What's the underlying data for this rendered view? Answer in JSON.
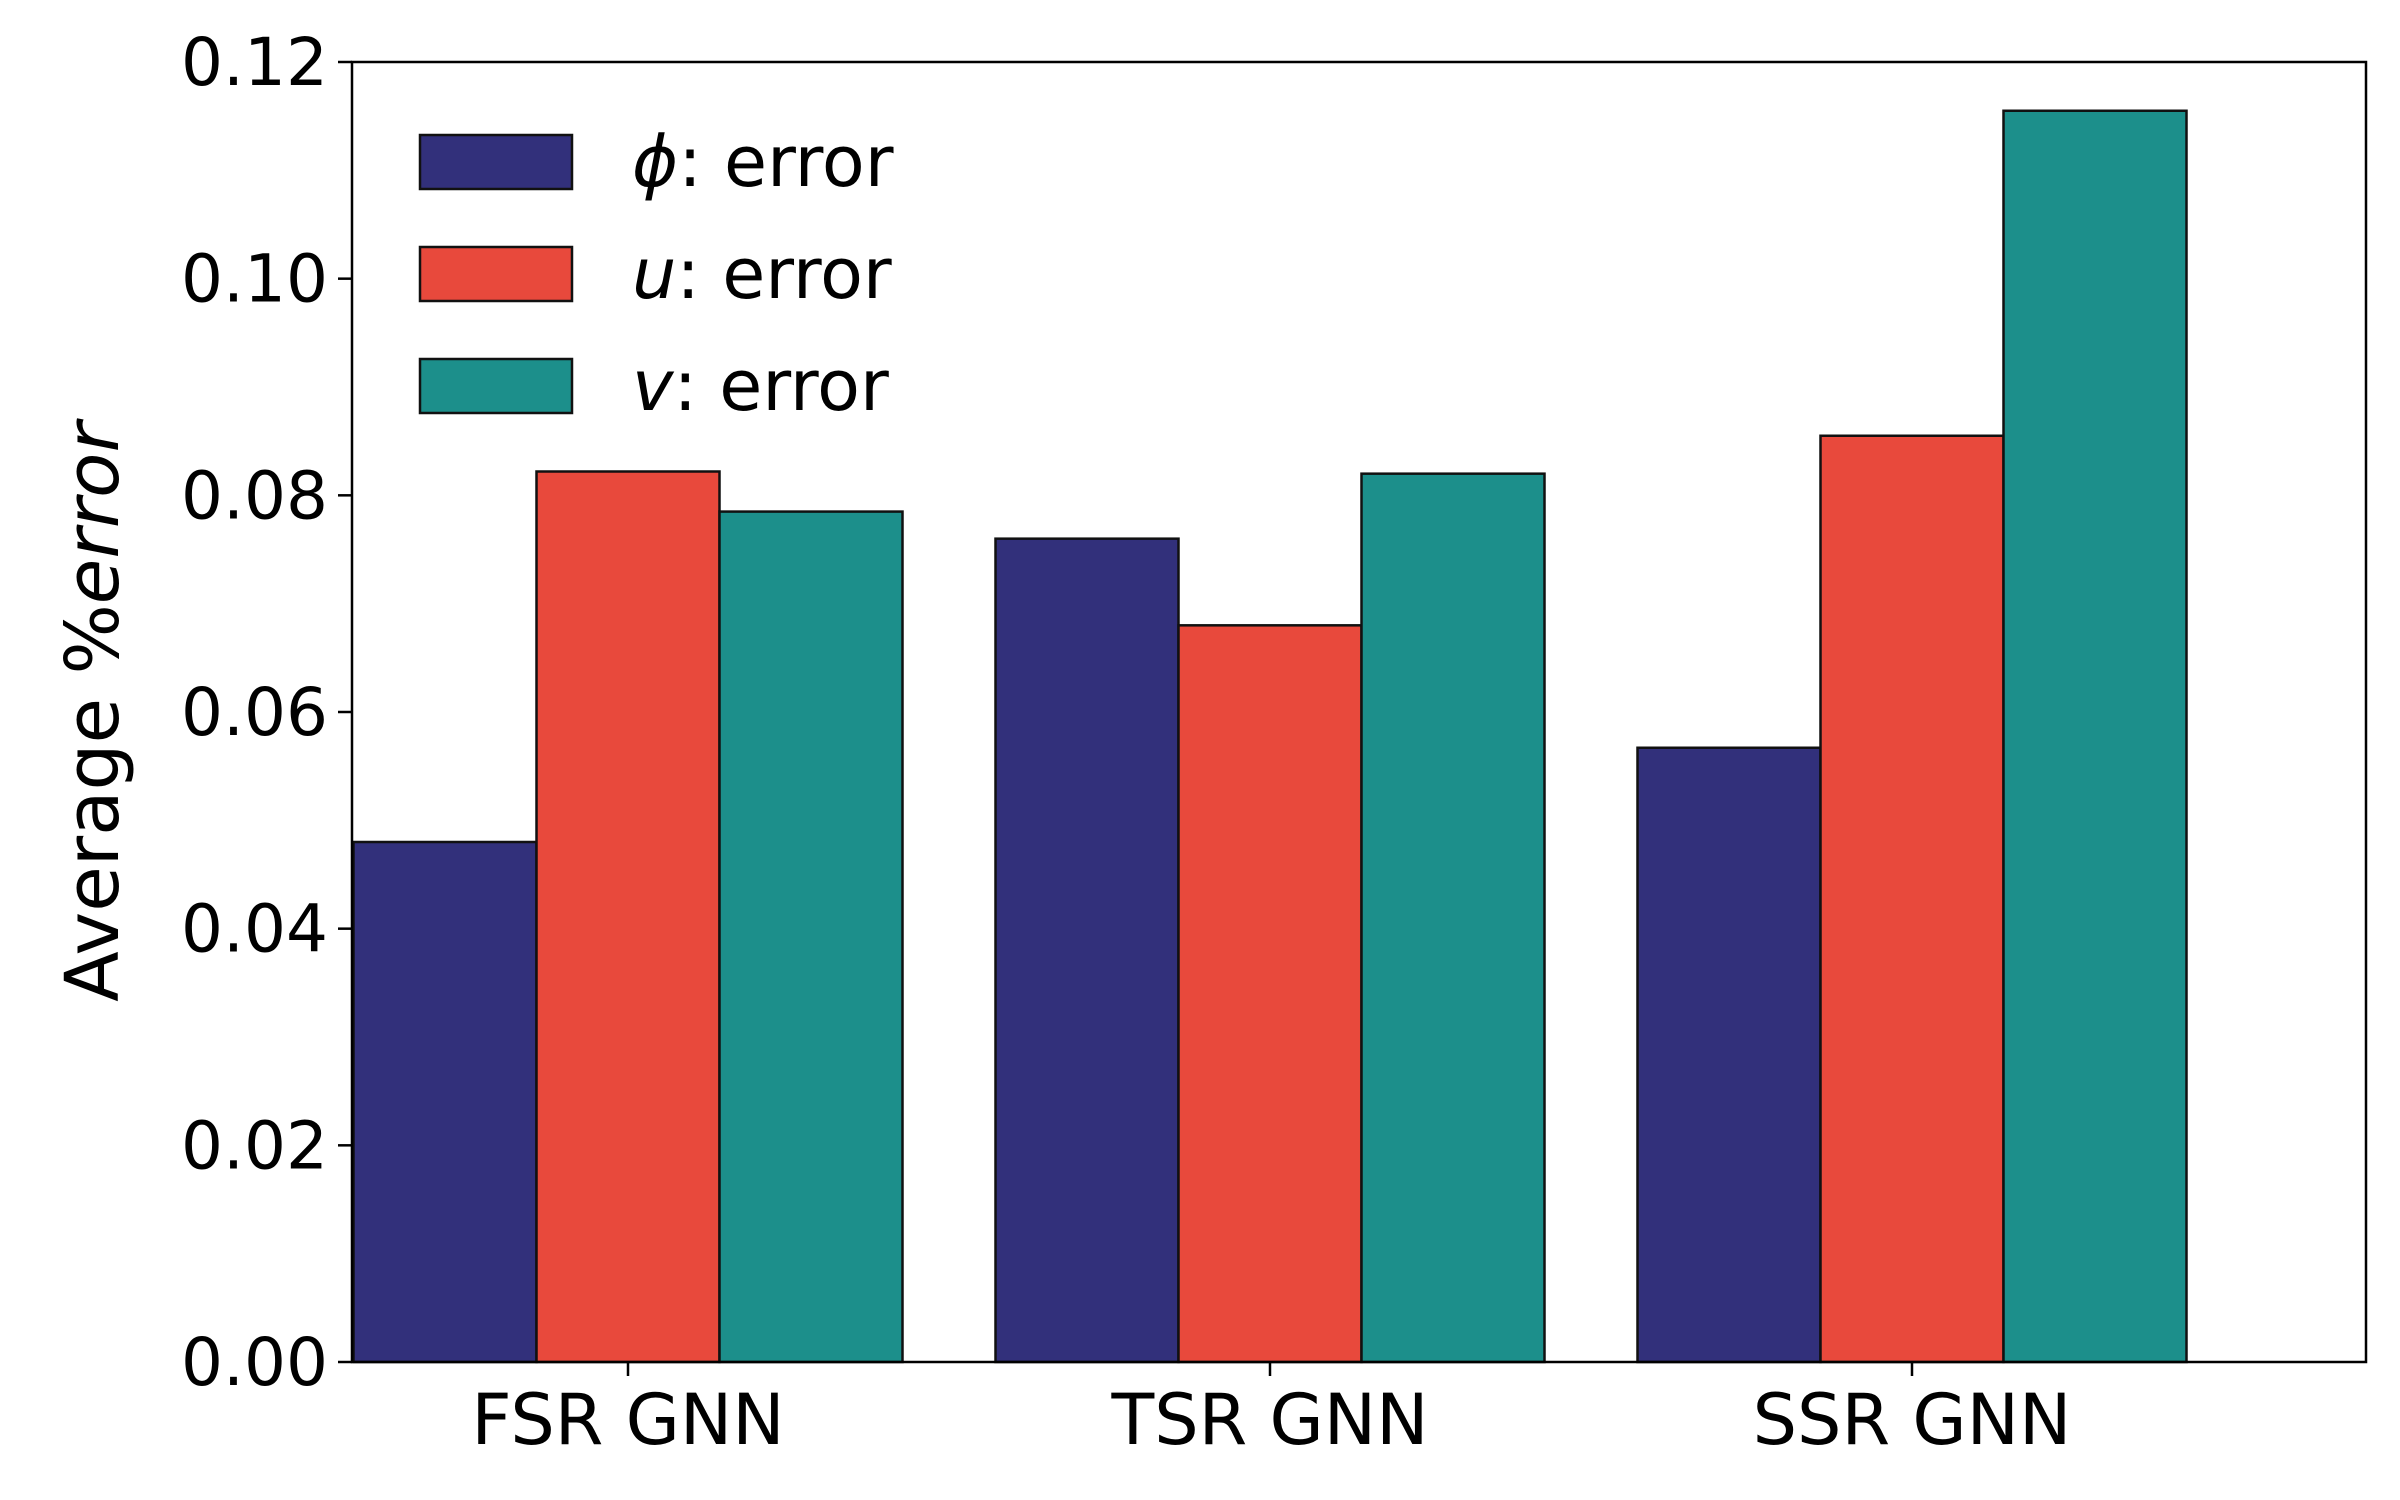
{
  "chart_data": {
    "type": "bar",
    "categories": [
      "FSR GNN",
      "TSR GNN",
      "SSR GNN"
    ],
    "series": [
      {
        "name": "ϕ: error",
        "symbol": "ϕ",
        "suffix": ": error",
        "color": "#32307b",
        "values": [
          0.048,
          0.076,
          0.0567
        ]
      },
      {
        "name": "u: error",
        "symbol": "u",
        "suffix": ": error",
        "color": "#e8493c",
        "values": [
          0.0822,
          0.068,
          0.0855
        ]
      },
      {
        "name": "v: error",
        "symbol": "v",
        "suffix": ": error",
        "color": "#1c8f8b",
        "values": [
          0.0785,
          0.082,
          0.1155
        ]
      }
    ],
    "title": "",
    "xlabel": "",
    "ylabel": {
      "prefix": "Average %",
      "italic": "error"
    },
    "ylim": [
      0,
      0.12
    ],
    "yticks": [
      "0.00",
      "0.02",
      "0.04",
      "0.06",
      "0.08",
      "0.10",
      "0.12"
    ],
    "grid": false,
    "legend_position": "top-left"
  }
}
